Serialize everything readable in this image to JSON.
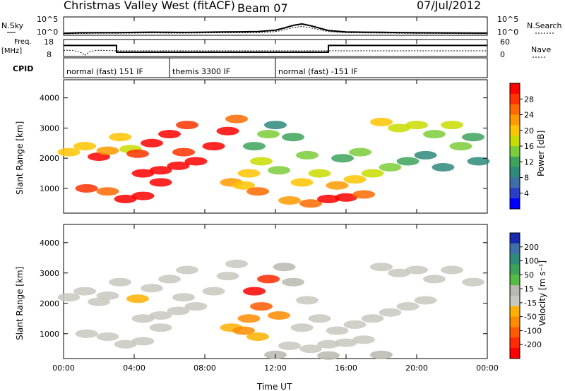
{
  "header": {
    "title": "Christmas Valley West (fitACF)",
    "beam": "Beam 07",
    "date": "07/Jul/2012"
  },
  "sky_panel": {
    "left_label": "N.Sky",
    "left_ticks": [
      "10^5",
      "10^0"
    ],
    "right_label": "N.Search",
    "right_ticks": [
      "10^5",
      "10^0"
    ]
  },
  "freq_panel": {
    "left_label_1": "Freq.",
    "left_label_2": "[MHz]",
    "left_ticks": [
      "18",
      "8"
    ],
    "right_label": "Nave",
    "right_ticks": [
      "60",
      "0"
    ]
  },
  "cpid_panel": {
    "label": "CPID",
    "segments": [
      {
        "start_hour": 0,
        "label": "normal (fast) 151 IF"
      },
      {
        "start_hour": 6,
        "label": "themis 3300 IF"
      },
      {
        "start_hour": 12,
        "label": "normal (fast) -151 IF"
      }
    ]
  },
  "power_colorbar": {
    "label": "Power [dB]",
    "ticks": [
      "28",
      "24",
      "20",
      "16",
      "12",
      "8",
      "4"
    ],
    "colors": [
      "#ff0000",
      "#ff3300",
      "#ff6a00",
      "#ff9a00",
      "#ffc400",
      "#c8dc00",
      "#7ccd3a",
      "#3da35a",
      "#2e8a7a",
      "#3f6fa8",
      "#2a3fc8",
      "#0000ff"
    ]
  },
  "velocity_colorbar": {
    "label": "Velocity [m s⁻¹]",
    "ticks": [
      "200",
      "100",
      "50",
      "15",
      "-15",
      "-50",
      "-100",
      "-200"
    ],
    "colors": [
      "#1a2ab0",
      "#3f6fa8",
      "#2e8a7a",
      "#3da35a",
      "#55bb44",
      "#b8b8b0",
      "#c8c8c0",
      "#ffb000",
      "#ff8c00",
      "#ff5a00",
      "#ff2a00",
      "#ff0000"
    ]
  },
  "range_axis": {
    "label": "Slant Range [km]",
    "ticks": [
      "4000",
      "3000",
      "2000",
      "1000"
    ]
  },
  "time_axis": {
    "label": "Time UT",
    "ticks": [
      "00:00",
      "04:00",
      "08:00",
      "12:00",
      "16:00",
      "20:00",
      "00:00"
    ]
  },
  "chart_data": [
    {
      "type": "line",
      "title": "N.Sky / N.Search",
      "x": [
        0,
        1,
        2,
        3,
        4,
        5,
        6,
        7,
        8,
        9,
        10,
        11,
        12,
        12.5,
        13,
        13.5,
        14,
        15,
        16,
        17,
        18,
        19,
        20,
        21,
        22,
        23,
        24
      ],
      "series": [
        {
          "name": "N.Sky",
          "values": [
            0.55,
            0.7,
            0.72,
            0.74,
            0.78,
            0.85,
            0.8,
            0.78,
            0.85,
            0.9,
            0.95,
            1.0,
            1.4,
            2.0,
            2.7,
            3.1,
            2.6,
            1.3,
            0.9,
            0.85,
            0.8,
            0.75,
            0.7,
            0.68,
            0.65,
            0.62,
            0.6
          ]
        },
        {
          "name": "N.Search",
          "values": [
            0.4,
            0.5,
            0.55,
            0.55,
            0.6,
            0.65,
            0.6,
            0.6,
            0.65,
            0.7,
            0.7,
            0.75,
            1.0,
            1.5,
            2.1,
            2.4,
            2.0,
            1.0,
            0.7,
            0.65,
            0.6,
            0.55,
            0.5,
            0.5,
            0.48,
            0.45,
            0.45
          ]
        }
      ],
      "ylim": [
        0,
        5
      ],
      "log_scale": true
    },
    {
      "type": "line",
      "title": "Freq. / Nave",
      "series": [
        {
          "name": "Freq.",
          "x": [
            0,
            3,
            3,
            15,
            15,
            24
          ],
          "values": [
            14.5,
            14.5,
            10.5,
            10.5,
            14.5,
            14.5
          ]
        },
        {
          "name": "Nave",
          "x": [
            0,
            0.5,
            1,
            1.2,
            1.5,
            2,
            3,
            6,
            9,
            12,
            15,
            18,
            21,
            24
          ],
          "values": [
            22,
            22,
            14,
            4,
            18,
            22,
            20,
            20,
            20,
            20,
            20,
            20,
            20,
            20
          ]
        }
      ],
      "ylim_freq": [
        8,
        18
      ],
      "ylim_nave": [
        0,
        60
      ]
    },
    {
      "type": "heatmap",
      "title": "Power [dB]",
      "x_unit": "hours UT",
      "y_unit": "km",
      "xlim": [
        0,
        24
      ],
      "ylim": [
        180,
        4600
      ],
      "zlim": [
        0,
        30
      ],
      "cells": [
        [
          0.3,
          2200,
          20
        ],
        [
          1.2,
          2400,
          18
        ],
        [
          2.0,
          2050,
          28
        ],
        [
          2.5,
          2250,
          22
        ],
        [
          3.2,
          2700,
          18
        ],
        [
          3.8,
          2300,
          16
        ],
        [
          1.3,
          1000,
          26
        ],
        [
          2.5,
          900,
          24
        ],
        [
          3.5,
          650,
          29
        ],
        [
          4.5,
          750,
          28
        ],
        [
          5.5,
          1200,
          28
        ],
        [
          4.5,
          1500,
          28
        ],
        [
          5.5,
          1600,
          28
        ],
        [
          6.5,
          1750,
          28
        ],
        [
          7.5,
          1900,
          28
        ],
        [
          8.5,
          2400,
          28
        ],
        [
          9.3,
          2900,
          28
        ],
        [
          9.8,
          3300,
          24
        ],
        [
          5.0,
          2500,
          28
        ],
        [
          6.0,
          2800,
          28
        ],
        [
          7.0,
          3100,
          26
        ],
        [
          4.2,
          2150,
          26
        ],
        [
          6.8,
          2200,
          26
        ],
        [
          9.5,
          1200,
          22
        ],
        [
          10.5,
          1500,
          18
        ],
        [
          11.2,
          1900,
          16
        ],
        [
          10.8,
          2400,
          12
        ],
        [
          11.6,
          2800,
          14
        ],
        [
          12.2,
          1600,
          14
        ],
        [
          10.2,
          1100,
          20
        ],
        [
          11.0,
          900,
          24
        ],
        [
          12.0,
          3100,
          10
        ],
        [
          13.0,
          2700,
          12
        ],
        [
          13.8,
          2100,
          14
        ],
        [
          14.5,
          1500,
          16
        ],
        [
          13.5,
          1200,
          18
        ],
        [
          12.8,
          600,
          22
        ],
        [
          14.0,
          500,
          24
        ],
        [
          15.0,
          650,
          28
        ],
        [
          16.0,
          700,
          28
        ],
        [
          17.0,
          800,
          24
        ],
        [
          15.5,
          1100,
          22
        ],
        [
          16.5,
          1300,
          20
        ],
        [
          17.5,
          1500,
          16
        ],
        [
          18.5,
          1700,
          14
        ],
        [
          19.5,
          1900,
          12
        ],
        [
          20.5,
          2100,
          10
        ],
        [
          15.8,
          2000,
          12
        ],
        [
          16.8,
          2200,
          14
        ],
        [
          18.0,
          3200,
          18
        ],
        [
          19.0,
          3000,
          16
        ],
        [
          20.0,
          3100,
          16
        ],
        [
          21.0,
          2800,
          14
        ],
        [
          22.0,
          3100,
          16
        ],
        [
          23.2,
          2700,
          12
        ],
        [
          23.5,
          1900,
          8
        ],
        [
          21.5,
          1700,
          10
        ],
        [
          22.5,
          2400,
          14
        ]
      ]
    },
    {
      "type": "heatmap",
      "title": "Velocity [m s⁻¹]",
      "x_unit": "hours UT",
      "y_unit": "km",
      "xlim": [
        0,
        24
      ],
      "ylim": [
        180,
        4600
      ],
      "zlim": [
        -250,
        250
      ],
      "cells": [
        [
          0.3,
          2200,
          0
        ],
        [
          1.2,
          2400,
          0
        ],
        [
          2.0,
          2050,
          0
        ],
        [
          2.5,
          2250,
          0
        ],
        [
          3.2,
          2700,
          0
        ],
        [
          1.3,
          1000,
          0
        ],
        [
          2.5,
          900,
          0
        ],
        [
          3.5,
          650,
          0
        ],
        [
          4.5,
          750,
          0
        ],
        [
          5.5,
          1200,
          0
        ],
        [
          4.5,
          1500,
          0
        ],
        [
          5.5,
          1600,
          0
        ],
        [
          6.5,
          1750,
          0
        ],
        [
          7.5,
          1900,
          -10
        ],
        [
          8.5,
          2400,
          -40
        ],
        [
          9.3,
          2900,
          -40
        ],
        [
          9.8,
          3300,
          -30
        ],
        [
          5.0,
          2500,
          -40
        ],
        [
          6.0,
          2800,
          -30
        ],
        [
          7.0,
          3100,
          -40
        ],
        [
          4.2,
          2150,
          -60
        ],
        [
          6.8,
          2200,
          0
        ],
        [
          9.5,
          1200,
          -80
        ],
        [
          10.5,
          1500,
          -120
        ],
        [
          11.2,
          1900,
          -150
        ],
        [
          10.8,
          2400,
          -220
        ],
        [
          11.6,
          2800,
          -200
        ],
        [
          12.2,
          1600,
          -120
        ],
        [
          10.2,
          1100,
          -90
        ],
        [
          11.0,
          900,
          -80
        ],
        [
          12.5,
          3200,
          30
        ],
        [
          13.0,
          2700,
          10
        ],
        [
          13.8,
          2100,
          0
        ],
        [
          14.5,
          1500,
          0
        ],
        [
          13.5,
          1200,
          0
        ],
        [
          12.8,
          600,
          0
        ],
        [
          14.0,
          500,
          0
        ],
        [
          15.0,
          650,
          0
        ],
        [
          16.0,
          700,
          0
        ],
        [
          17.0,
          800,
          0
        ],
        [
          15.5,
          1100,
          0
        ],
        [
          16.5,
          1300,
          0
        ],
        [
          17.5,
          1500,
          0
        ],
        [
          18.5,
          1700,
          0
        ],
        [
          19.5,
          1900,
          0
        ],
        [
          20.5,
          2100,
          0
        ],
        [
          18.0,
          3200,
          0
        ],
        [
          19.0,
          3000,
          0
        ],
        [
          20.0,
          3100,
          0
        ],
        [
          21.0,
          2800,
          0
        ],
        [
          22.0,
          3100,
          0
        ],
        [
          23.2,
          2700,
          0
        ],
        [
          12.0,
          300,
          40
        ],
        [
          15.0,
          280,
          40
        ],
        [
          18.0,
          300,
          30
        ]
      ]
    }
  ]
}
